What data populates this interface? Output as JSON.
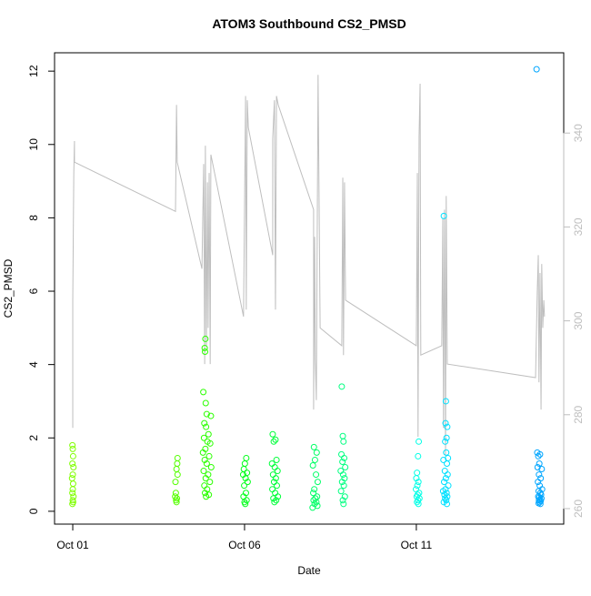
{
  "chart_data": {
    "type": "scatter",
    "title": "ATOM3 Southbound CS2_PMSD",
    "x_label": "Date",
    "y_label": "CS2_PMSD",
    "xlim": [
      0.47,
      15.29
    ],
    "xticks": [
      {
        "value": 1,
        "label": "Oct 01"
      },
      {
        "value": 6,
        "label": "Oct 06"
      },
      {
        "value": 11,
        "label": "Oct 11"
      }
    ],
    "ylim": [
      -0.35,
      12.5
    ],
    "yticks": [
      0,
      2,
      4,
      6,
      8,
      10,
      12
    ],
    "y2lim": [
      256.7,
      357.1
    ],
    "y2ticks": [
      260,
      280,
      300,
      320,
      340
    ],
    "y2_color": "#bebebe",
    "series": [
      {
        "color": "#7fff00",
        "x": [
          0.99,
          1.0,
          1.01,
          0.99,
          1.02,
          1.0,
          0.98,
          1.01,
          1.0,
          0.99,
          1.02,
          1.0,
          1.01,
          0.99
        ],
        "values": [
          1.8,
          1.7,
          1.5,
          1.3,
          1.2,
          1.0,
          0.9,
          0.75,
          0.6,
          0.5,
          0.4,
          0.3,
          0.25,
          0.2
        ]
      },
      {
        "color": "#55ff00",
        "x": [
          4.05,
          4.04,
          4.02,
          4.05,
          3.99,
          4.0,
          3.98,
          4.03,
          4.01,
          4.02
        ],
        "values": [
          1.45,
          1.3,
          1.15,
          1.0,
          0.8,
          0.5,
          0.4,
          0.35,
          0.3,
          0.25
        ]
      },
      {
        "color": "#2bff00",
        "x": [
          4.86,
          4.84,
          4.85,
          4.8,
          4.87,
          4.9,
          5.02,
          4.83,
          4.88,
          4.95,
          4.82,
          4.92,
          5.0,
          4.86,
          4.79,
          4.97,
          4.84,
          4.9,
          5.03,
          4.81,
          4.94,
          4.87,
          4.99,
          4.83,
          4.91,
          4.85,
          4.96,
          4.88
        ],
        "values": [
          4.7,
          4.45,
          4.35,
          3.25,
          2.95,
          2.65,
          2.6,
          2.4,
          2.3,
          2.1,
          2.0,
          1.9,
          1.85,
          1.7,
          1.6,
          1.5,
          1.4,
          1.3,
          1.2,
          1.1,
          1.0,
          0.9,
          0.8,
          0.7,
          0.6,
          0.5,
          0.45,
          0.4
        ]
      },
      {
        "color": "#00ff1a",
        "x": [
          6.05,
          6.01,
          5.98,
          6.07,
          5.96,
          6.03,
          6.09,
          5.99,
          6.04,
          5.97,
          6.06,
          6.0,
          6.02
        ],
        "values": [
          1.45,
          1.3,
          1.15,
          1.05,
          1.0,
          0.9,
          0.8,
          0.7,
          0.5,
          0.4,
          0.3,
          0.25,
          0.2
        ]
      },
      {
        "color": "#00ff3a",
        "x": [
          6.82,
          6.9,
          6.85,
          6.93,
          6.8,
          6.88,
          6.96,
          6.83,
          6.91,
          6.86,
          6.94,
          6.81,
          6.89,
          6.97,
          6.84,
          6.92,
          6.87
        ],
        "values": [
          2.1,
          1.95,
          1.9,
          1.4,
          1.3,
          1.2,
          1.1,
          1.0,
          0.9,
          0.8,
          0.7,
          0.6,
          0.5,
          0.4,
          0.35,
          0.3,
          0.25
        ]
      },
      {
        "color": "#00ff66",
        "x": [
          8.02,
          8.1,
          8.05,
          7.99,
          8.08,
          8.13,
          8.03,
          8.0,
          8.11,
          8.06,
          8.01,
          8.09,
          8.04,
          8.12,
          7.98
        ],
        "values": [
          1.75,
          1.6,
          1.4,
          1.25,
          1.0,
          0.8,
          0.6,
          0.5,
          0.4,
          0.35,
          0.3,
          0.25,
          0.2,
          0.15,
          0.1
        ]
      },
      {
        "color": "#00ff80",
        "x": [
          8.83,
          8.86,
          8.88,
          8.82,
          8.9,
          8.85,
          8.93,
          8.8,
          8.87,
          8.91,
          8.84,
          8.89,
          8.81,
          8.92,
          8.86,
          8.88
        ],
        "values": [
          3.4,
          2.05,
          1.9,
          1.55,
          1.45,
          1.35,
          1.2,
          1.1,
          1.0,
          0.9,
          0.8,
          0.7,
          0.55,
          0.4,
          0.3,
          0.2
        ]
      },
      {
        "color": "#00ffe6",
        "x": [
          11.07,
          11.05,
          11.02,
          11.0,
          11.06,
          11.03,
          10.99,
          11.08,
          11.04,
          11.01,
          11.09,
          11.05,
          11.02,
          11.06
        ],
        "values": [
          1.9,
          1.5,
          1.05,
          0.9,
          0.8,
          0.7,
          0.6,
          0.5,
          0.45,
          0.4,
          0.35,
          0.3,
          0.25,
          0.2
        ]
      },
      {
        "color": "#00e0ff",
        "x": [
          11.8,
          11.86,
          11.85,
          11.9,
          11.88,
          11.84,
          11.87,
          11.92,
          11.79,
          11.89,
          11.83,
          11.91,
          11.86,
          11.81,
          11.93,
          11.85,
          11.78,
          11.88,
          11.82,
          11.9,
          11.84,
          11.87,
          11.8,
          11.89
        ],
        "values": [
          8.05,
          3.0,
          2.4,
          2.3,
          2.0,
          1.9,
          1.6,
          1.45,
          1.4,
          1.3,
          1.1,
          1.0,
          0.9,
          0.8,
          0.7,
          0.6,
          0.55,
          0.5,
          0.45,
          0.4,
          0.35,
          0.3,
          0.25,
          0.2
        ]
      },
      {
        "color": "#00a6ff",
        "x": [
          14.5,
          14.52,
          14.6,
          14.55,
          14.58,
          14.53,
          14.65,
          14.57,
          14.62,
          14.54,
          14.59,
          14.66,
          14.56,
          14.61,
          14.63,
          14.55,
          14.58,
          14.64,
          14.6,
          14.57,
          14.62,
          14.59,
          14.56,
          14.61
        ],
        "values": [
          12.05,
          1.6,
          1.55,
          1.5,
          1.3,
          1.2,
          1.15,
          1.0,
          0.9,
          0.8,
          0.7,
          0.6,
          0.55,
          0.5,
          0.45,
          0.4,
          0.38,
          0.35,
          0.32,
          0.3,
          0.28,
          0.25,
          0.22,
          0.2
        ]
      },
      {
        "type": "line",
        "axis": "y2",
        "color": "#bebebe",
        "x": [
          1.0,
          1.0,
          1.03,
          1.05,
          1.05,
          3.99,
          4.02,
          4.04,
          4.76,
          4.81,
          4.84,
          4.86,
          4.89,
          4.92,
          4.94,
          4.97,
          5.0,
          5.02,
          5.97,
          6.03,
          6.05,
          6.08,
          6.11,
          6.82,
          6.82,
          6.87,
          6.9,
          6.93,
          6.98,
          8.01,
          8.01,
          8.04,
          8.06,
          8.09,
          8.14,
          8.2,
          8.83,
          8.86,
          8.88,
          8.91,
          8.94,
          11.0,
          11.03,
          11.05,
          11.08,
          11.11,
          11.13,
          11.74,
          11.77,
          11.79,
          11.82,
          11.85,
          11.87,
          11.9,
          14.47,
          14.52,
          14.55,
          14.57,
          14.6,
          14.63,
          14.65,
          14.68,
          14.71,
          14.73
        ],
        "values": [
          277.2,
          304.4,
          331.5,
          338.3,
          333.8,
          323.3,
          346.0,
          333.8,
          311.1,
          333.4,
          290.8,
          337.3,
          294.7,
          329.5,
          298.5,
          331.5,
          290.8,
          335.4,
          300.9,
          347.9,
          302.4,
          347.0,
          341.2,
          314.0,
          338.8,
          347.0,
          302.4,
          347.9,
          346.0,
          323.7,
          281.1,
          317.9,
          291.8,
          283.1,
          352.4,
          298.5,
          294.7,
          330.5,
          292.7,
          329.5,
          304.4,
          294.7,
          331.5,
          275.3,
          339.2,
          350.5,
          292.7,
          294.7,
          321.8,
          277.2,
          323.7,
          271.4,
          326.6,
          290.8,
          287.9,
          306.3,
          314.0,
          286.9,
          310.2,
          281.1,
          312.1,
          298.5,
          304.4,
          300.9
        ]
      }
    ]
  }
}
